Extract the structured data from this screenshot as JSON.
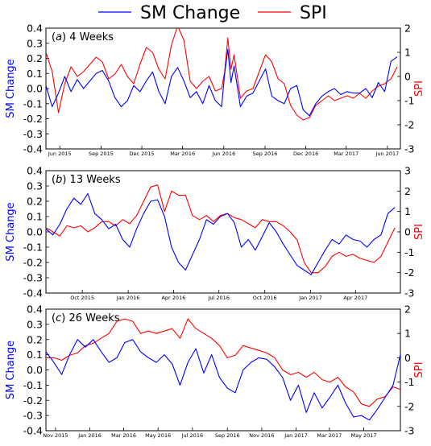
{
  "legend": {
    "position": "top-center",
    "entries": [
      {
        "name": "SM Change",
        "color": "#0000ff"
      },
      {
        "name": "SPI",
        "color": "#ff0000"
      }
    ]
  },
  "chart_data": [
    {
      "type": "line",
      "panel_letter": "a",
      "panel_title": "4 Weeks",
      "ylabel": "SM Change",
      "y2label": "SPI",
      "ylim": [
        -0.4,
        0.4
      ],
      "y2lim": [
        -3,
        2
      ],
      "yticks": [
        -0.4,
        -0.3,
        -0.2,
        -0.1,
        0.0,
        0.1,
        0.2,
        0.3,
        0.4
      ],
      "y2ticks": [
        -3,
        -2,
        -1,
        0,
        1,
        2
      ],
      "xlim": [
        "2015-05-01",
        "2017-06-30"
      ],
      "xticks": [
        {
          "date": "2015-06-01",
          "label": "Jun 2015"
        },
        {
          "date": "2015-09-01",
          "label": "Sep 2015"
        },
        {
          "date": "2015-12-01",
          "label": "Dec 2015"
        },
        {
          "date": "2016-03-01",
          "label": "Mar 2016"
        },
        {
          "date": "2016-06-01",
          "label": "Jun 2016"
        },
        {
          "date": "2016-09-01",
          "label": "Sep 2016"
        },
        {
          "date": "2016-12-01",
          "label": "Dec 2016"
        },
        {
          "date": "2017-03-01",
          "label": "Mar 2017"
        },
        {
          "date": "2017-06-01",
          "label": "Jun 2017"
        }
      ],
      "series": [
        {
          "name": "SM Change",
          "axis": "left",
          "color": "#0000ff",
          "x": [
            "2015-05-01",
            "2015-05-15",
            "2015-05-29",
            "2015-06-12",
            "2015-06-26",
            "2015-07-10",
            "2015-07-24",
            "2015-08-07",
            "2015-08-21",
            "2015-09-04",
            "2015-09-18",
            "2015-10-02",
            "2015-10-16",
            "2015-10-30",
            "2015-11-13",
            "2015-11-27",
            "2015-12-11",
            "2015-12-25",
            "2016-01-08",
            "2016-01-22",
            "2016-02-05",
            "2016-02-19",
            "2016-03-04",
            "2016-03-18",
            "2016-04-01",
            "2016-04-15",
            "2016-04-29",
            "2016-05-13",
            "2016-05-27",
            "2016-06-03",
            "2016-06-10",
            "2016-06-17",
            "2016-06-24",
            "2016-07-08",
            "2016-07-22",
            "2016-08-05",
            "2016-08-19",
            "2016-09-02",
            "2016-09-16",
            "2016-09-30",
            "2016-10-14",
            "2016-10-28",
            "2016-11-11",
            "2016-11-25",
            "2016-12-09",
            "2016-12-23",
            "2017-01-06",
            "2017-01-20",
            "2017-02-03",
            "2017-02-17",
            "2017-03-03",
            "2017-03-17",
            "2017-03-31",
            "2017-04-14",
            "2017-04-28",
            "2017-05-12",
            "2017-05-26",
            "2017-06-09",
            "2017-06-23"
          ],
          "y": [
            0.02,
            -0.12,
            -0.03,
            0.08,
            -0.02,
            0.06,
            0.0,
            0.05,
            0.1,
            0.12,
            0.05,
            -0.06,
            -0.12,
            -0.08,
            0.02,
            -0.02,
            0.05,
            0.11,
            -0.02,
            -0.1,
            0.08,
            0.14,
            0.05,
            -0.06,
            -0.02,
            -0.1,
            0.02,
            -0.08,
            -0.12,
            0.1,
            0.26,
            0.04,
            0.15,
            -0.12,
            -0.05,
            -0.03,
            0.05,
            0.13,
            -0.05,
            -0.08,
            -0.1,
            0.0,
            0.02,
            -0.14,
            -0.18,
            -0.1,
            -0.05,
            -0.02,
            0.0,
            -0.04,
            -0.02,
            -0.03,
            -0.03,
            0.0,
            -0.06,
            0.04,
            -0.02,
            0.18,
            0.21
          ]
        },
        {
          "name": "SPI",
          "axis": "right",
          "color": "#ff0000",
          "x": [
            "2015-05-01",
            "2015-05-15",
            "2015-05-29",
            "2015-06-12",
            "2015-06-26",
            "2015-07-10",
            "2015-07-24",
            "2015-08-07",
            "2015-08-21",
            "2015-09-04",
            "2015-09-18",
            "2015-10-02",
            "2015-10-16",
            "2015-10-30",
            "2015-11-13",
            "2015-11-27",
            "2015-12-11",
            "2015-12-25",
            "2016-01-08",
            "2016-01-22",
            "2016-02-05",
            "2016-02-19",
            "2016-03-04",
            "2016-03-18",
            "2016-04-01",
            "2016-04-15",
            "2016-04-29",
            "2016-05-13",
            "2016-05-27",
            "2016-06-03",
            "2016-06-10",
            "2016-06-17",
            "2016-06-24",
            "2016-07-08",
            "2016-07-22",
            "2016-08-05",
            "2016-08-19",
            "2016-09-02",
            "2016-09-16",
            "2016-09-30",
            "2016-10-14",
            "2016-10-28",
            "2016-11-11",
            "2016-11-25",
            "2016-12-09",
            "2016-12-23",
            "2017-01-06",
            "2017-01-20",
            "2017-02-03",
            "2017-02-17",
            "2017-03-03",
            "2017-03-17",
            "2017-03-31",
            "2017-04-14",
            "2017-04-28",
            "2017-05-12",
            "2017-05-26",
            "2017-06-09",
            "2017-06-23"
          ],
          "y": [
            1.0,
            0.2,
            -1.5,
            -0.3,
            0.4,
            0.0,
            0.2,
            0.5,
            0.8,
            0.6,
            -0.1,
            0.1,
            0.5,
            0.0,
            -0.3,
            0.5,
            1.2,
            1.0,
            0.3,
            -0.1,
            1.3,
            2.1,
            1.5,
            -0.2,
            -0.5,
            -0.2,
            0.0,
            -0.6,
            -0.5,
            0.2,
            1.6,
            0.3,
            0.9,
            -0.9,
            -0.6,
            -0.5,
            0.2,
            0.9,
            0.6,
            -0.1,
            -0.3,
            -1.2,
            -1.6,
            -1.8,
            -1.7,
            -1.2,
            -1.0,
            -0.8,
            -1.0,
            -0.9,
            -0.8,
            -0.9,
            -0.7,
            -0.9,
            -0.6,
            -0.4,
            -0.3,
            -0.1,
            0.4
          ]
        }
      ]
    },
    {
      "type": "line",
      "panel_letter": "b",
      "panel_title": "13 Weeks",
      "ylabel": "SM Change",
      "y2label": "SPI",
      "ylim": [
        -0.4,
        0.4
      ],
      "y2lim": [
        -3,
        3
      ],
      "yticks": [
        -0.4,
        -0.3,
        -0.2,
        -0.1,
        0.0,
        0.1,
        0.2,
        0.3,
        0.4
      ],
      "y2ticks": [
        -3,
        -2,
        -1,
        0,
        1,
        2,
        3
      ],
      "xlim": [
        "2015-07-20",
        "2017-06-30"
      ],
      "xticks": [
        {
          "date": "2015-10-01",
          "label": "Oct 2015"
        },
        {
          "date": "2016-01-01",
          "label": "Jan 2016"
        },
        {
          "date": "2016-04-01",
          "label": "Apr 2016"
        },
        {
          "date": "2016-07-01",
          "label": "Jul 2016"
        },
        {
          "date": "2016-10-01",
          "label": "Oct 2016"
        },
        {
          "date": "2017-01-01",
          "label": "Jan 2017"
        },
        {
          "date": "2017-04-01",
          "label": "Apr 2017"
        }
      ],
      "series": [
        {
          "name": "SM Change",
          "axis": "left",
          "color": "#0000ff",
          "x": [
            "2015-07-20",
            "2015-08-03",
            "2015-08-17",
            "2015-08-31",
            "2015-09-14",
            "2015-09-28",
            "2015-10-12",
            "2015-10-26",
            "2015-11-09",
            "2015-11-23",
            "2015-12-07",
            "2015-12-21",
            "2016-01-04",
            "2016-01-18",
            "2016-02-01",
            "2016-02-15",
            "2016-02-29",
            "2016-03-14",
            "2016-03-28",
            "2016-04-11",
            "2016-04-25",
            "2016-05-09",
            "2016-05-23",
            "2016-06-06",
            "2016-06-20",
            "2016-07-04",
            "2016-07-18",
            "2016-08-01",
            "2016-08-15",
            "2016-08-29",
            "2016-09-12",
            "2016-09-26",
            "2016-10-10",
            "2016-10-24",
            "2016-11-07",
            "2016-11-21",
            "2016-12-05",
            "2016-12-19",
            "2017-01-02",
            "2017-01-16",
            "2017-01-30",
            "2017-02-13",
            "2017-02-27",
            "2017-03-13",
            "2017-03-27",
            "2017-04-10",
            "2017-04-24",
            "2017-05-08",
            "2017-05-22",
            "2017-06-05",
            "2017-06-19"
          ],
          "y": [
            0.02,
            -0.02,
            0.05,
            0.15,
            0.22,
            0.18,
            0.25,
            0.12,
            0.08,
            0.02,
            0.05,
            -0.05,
            -0.1,
            0.02,
            0.12,
            0.2,
            0.21,
            0.1,
            -0.1,
            -0.2,
            -0.25,
            -0.15,
            -0.05,
            0.08,
            0.05,
            0.1,
            0.12,
            0.06,
            -0.1,
            -0.05,
            -0.12,
            -0.03,
            0.06,
            0.0,
            -0.08,
            -0.15,
            -0.22,
            -0.25,
            -0.28,
            -0.2,
            -0.12,
            -0.05,
            -0.08,
            -0.02,
            -0.05,
            -0.06,
            -0.1,
            -0.05,
            -0.02,
            0.12,
            0.16
          ]
        },
        {
          "name": "SPI",
          "axis": "right",
          "color": "#ff0000",
          "x": [
            "2015-07-20",
            "2015-08-03",
            "2015-08-17",
            "2015-08-31",
            "2015-09-14",
            "2015-09-28",
            "2015-10-12",
            "2015-10-26",
            "2015-11-09",
            "2015-11-23",
            "2015-12-07",
            "2015-12-21",
            "2016-01-04",
            "2016-01-18",
            "2016-02-01",
            "2016-02-15",
            "2016-02-29",
            "2016-03-14",
            "2016-03-28",
            "2016-04-11",
            "2016-04-25",
            "2016-05-09",
            "2016-05-23",
            "2016-06-06",
            "2016-06-20",
            "2016-07-04",
            "2016-07-18",
            "2016-08-01",
            "2016-08-15",
            "2016-08-29",
            "2016-09-12",
            "2016-09-26",
            "2016-10-10",
            "2016-10-24",
            "2016-11-07",
            "2016-11-21",
            "2016-12-05",
            "2016-12-19",
            "2017-01-02",
            "2017-01-16",
            "2017-01-30",
            "2017-02-13",
            "2017-02-27",
            "2017-03-13",
            "2017-03-27",
            "2017-04-10",
            "2017-04-24",
            "2017-05-08",
            "2017-05-22",
            "2017-06-05",
            "2017-06-19"
          ],
          "y": [
            0.2,
            0.0,
            -0.2,
            0.3,
            0.2,
            0.3,
            0.0,
            0.2,
            0.5,
            0.5,
            0.3,
            0.6,
            0.4,
            0.8,
            1.5,
            2.2,
            2.3,
            1.0,
            2.0,
            1.8,
            1.8,
            0.8,
            0.6,
            0.8,
            0.5,
            0.8,
            0.9,
            0.7,
            0.6,
            0.4,
            0.2,
            0.6,
            0.5,
            0.5,
            0.3,
            0.0,
            -0.4,
            -1.5,
            -2.0,
            -2.0,
            -1.7,
            -1.2,
            -1.0,
            -1.2,
            -1.1,
            -1.3,
            -1.4,
            -1.5,
            -1.2,
            -0.5,
            0.2
          ]
        }
      ]
    },
    {
      "type": "line",
      "panel_letter": "c",
      "panel_title": "26 Weeks",
      "ylabel": "SM Change",
      "y2label": "SPI",
      "ylim": [
        -0.4,
        0.4
      ],
      "y2lim": [
        -3,
        2
      ],
      "yticks": [
        -0.4,
        -0.3,
        -0.2,
        -0.1,
        0.0,
        0.1,
        0.2,
        0.3,
        0.4
      ],
      "y2ticks": [
        -3,
        -2,
        -1,
        0,
        1,
        2
      ],
      "xlim": [
        "2015-10-15",
        "2017-07-05"
      ],
      "xticks": [
        {
          "date": "2015-11-01",
          "label": "Nov 2015"
        },
        {
          "date": "2016-01-01",
          "label": "Jan 2016"
        },
        {
          "date": "2016-03-01",
          "label": "Mar 2016"
        },
        {
          "date": "2016-05-01",
          "label": "May 2016"
        },
        {
          "date": "2016-07-01",
          "label": "Jul 2016"
        },
        {
          "date": "2016-09-01",
          "label": "Sep 2016"
        },
        {
          "date": "2016-11-01",
          "label": "Nov 2016"
        },
        {
          "date": "2017-01-01",
          "label": "Jan 2017"
        },
        {
          "date": "2017-03-01",
          "label": "Mar 2017"
        },
        {
          "date": "2017-05-01",
          "label": "May 2017"
        }
      ],
      "series": [
        {
          "name": "SM Change",
          "axis": "left",
          "color": "#0000ff",
          "x": [
            "2015-10-15",
            "2015-10-29",
            "2015-11-12",
            "2015-11-26",
            "2015-12-10",
            "2015-12-24",
            "2016-01-07",
            "2016-01-21",
            "2016-02-04",
            "2016-02-18",
            "2016-03-03",
            "2016-03-17",
            "2016-03-31",
            "2016-04-14",
            "2016-04-28",
            "2016-05-12",
            "2016-05-26",
            "2016-06-09",
            "2016-06-23",
            "2016-07-07",
            "2016-07-21",
            "2016-08-04",
            "2016-08-18",
            "2016-09-01",
            "2016-09-15",
            "2016-09-29",
            "2016-10-13",
            "2016-10-27",
            "2016-11-10",
            "2016-11-24",
            "2016-12-08",
            "2016-12-22",
            "2017-01-05",
            "2017-01-19",
            "2017-02-02",
            "2017-02-16",
            "2017-03-02",
            "2017-03-16",
            "2017-03-30",
            "2017-04-13",
            "2017-04-27",
            "2017-05-11",
            "2017-05-25",
            "2017-06-08",
            "2017-06-22",
            "2017-07-05"
          ],
          "y": [
            0.12,
            0.05,
            -0.03,
            0.1,
            0.2,
            0.15,
            0.2,
            0.12,
            0.05,
            0.08,
            0.18,
            0.2,
            0.12,
            0.08,
            0.05,
            0.1,
            0.04,
            -0.1,
            0.05,
            0.14,
            -0.02,
            0.1,
            -0.05,
            -0.12,
            -0.15,
            0.0,
            0.05,
            0.08,
            0.07,
            0.02,
            -0.05,
            -0.2,
            -0.1,
            -0.28,
            -0.15,
            -0.25,
            -0.18,
            -0.1,
            -0.22,
            -0.31,
            -0.3,
            -0.33,
            -0.26,
            -0.18,
            -0.1,
            0.1
          ]
        },
        {
          "name": "SPI",
          "axis": "right",
          "color": "#ff0000",
          "x": [
            "2015-10-15",
            "2015-10-29",
            "2015-11-12",
            "2015-11-26",
            "2015-12-10",
            "2015-12-24",
            "2016-01-07",
            "2016-01-21",
            "2016-02-04",
            "2016-02-18",
            "2016-03-03",
            "2016-03-17",
            "2016-03-31",
            "2016-04-14",
            "2016-04-28",
            "2016-05-12",
            "2016-05-26",
            "2016-06-09",
            "2016-06-23",
            "2016-07-07",
            "2016-07-21",
            "2016-08-04",
            "2016-08-18",
            "2016-09-01",
            "2016-09-15",
            "2016-09-29",
            "2016-10-13",
            "2016-10-27",
            "2016-11-10",
            "2016-11-24",
            "2016-12-08",
            "2016-12-22",
            "2017-01-05",
            "2017-01-19",
            "2017-02-02",
            "2017-02-16",
            "2017-03-02",
            "2017-03-16",
            "2017-03-30",
            "2017-04-13",
            "2017-04-27",
            "2017-05-11",
            "2017-05-25",
            "2017-06-08",
            "2017-06-22",
            "2017-07-05"
          ],
          "y": [
            0.0,
            0.0,
            -0.1,
            0.1,
            0.2,
            0.5,
            0.6,
            0.8,
            1.0,
            1.5,
            1.6,
            1.5,
            1.0,
            1.1,
            1.0,
            1.1,
            1.2,
            0.8,
            1.6,
            1.2,
            1.0,
            0.8,
            0.5,
            0.0,
            0.1,
            0.5,
            0.4,
            0.3,
            0.2,
            0.0,
            -0.5,
            -0.7,
            -0.6,
            -0.8,
            -0.6,
            -0.9,
            -1.0,
            -0.8,
            -1.2,
            -1.4,
            -1.9,
            -2.0,
            -1.7,
            -1.6,
            -1.2,
            -1.3
          ]
        }
      ]
    }
  ]
}
